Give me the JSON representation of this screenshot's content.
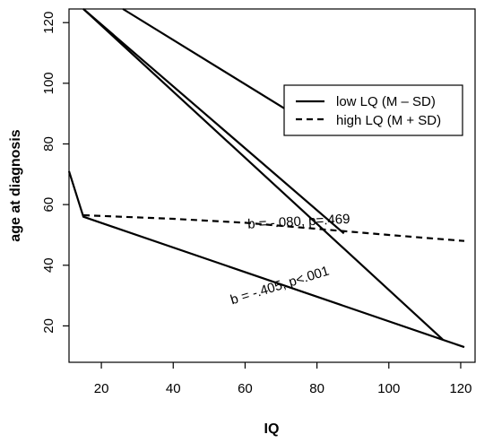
{
  "chart_data": {
    "type": "line",
    "title": "",
    "xlabel": "IQ",
    "ylabel": "age at diagnosis",
    "xlim": [
      11,
      124
    ],
    "ylim": [
      8,
      124.5
    ],
    "xticks": [
      20,
      40,
      60,
      80,
      100,
      120
    ],
    "yticks": [
      20,
      40,
      60,
      80,
      100,
      120
    ],
    "grid": false,
    "legend_position": "top-right",
    "legend": [
      {
        "label": "low LQ (M – SD)",
        "style": "solid"
      },
      {
        "label": "high LQ (M + SD)",
        "style": "dashed"
      }
    ],
    "series": [
      {
        "style": "dashed",
        "color": "#000000",
        "x": [
          15,
          40,
          60,
          80,
          100,
          121
        ],
        "y": [
          56.5,
          55.3,
          54.0,
          52.0,
          50.0,
          48.0
        ]
      },
      {
        "style": "solid",
        "color": "#000000",
        "x": [
          11,
          15,
          121
        ],
        "y": [
          71,
          56,
          13
        ]
      },
      {
        "style": "solid",
        "color": "#000000",
        "x": [
          15,
          87.5
        ],
        "y": [
          124.5,
          50.5
        ]
      },
      {
        "style": "solid",
        "color": "#000000",
        "x": [
          15,
          115
        ],
        "y": [
          124.5,
          15.5
        ]
      },
      {
        "style": "solid",
        "color": "#000000",
        "x": [
          26,
          76
        ],
        "y": [
          124.5,
          88
        ]
      }
    ],
    "annotations": [
      {
        "text": "b = -.080, p=.469",
        "x": 75,
        "y": 53,
        "rotation": -3
      },
      {
        "text": "b = -.405, p<.001",
        "x": 70,
        "y": 32,
        "rotation": -17
      }
    ]
  }
}
